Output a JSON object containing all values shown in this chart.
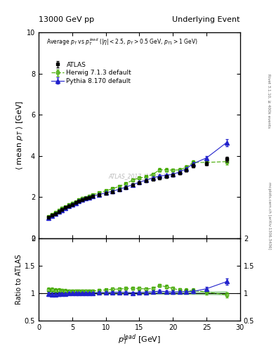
{
  "title_left": "13000 GeV pp",
  "title_right": "Underlying Event",
  "right_label": "Rivet 3.1.10, ≥ 400k events",
  "right_label2": "mcplots.cern.ch [arXiv:1306.3436]",
  "watermark": "ATLAS_2017_I1509919",
  "xlabel": "$p_T^{lead}$ [GeV]",
  "ylabel_main": "$\\langle$ mean $p_T$ $\\rangle$ [GeV]",
  "ylabel_ratio": "Ratio to ATLAS",
  "ylim_main": [
    0,
    10
  ],
  "ylim_ratio": [
    0.5,
    2
  ],
  "xlim": [
    0,
    30
  ],
  "atlas_x": [
    1.5,
    2.0,
    2.5,
    3.0,
    3.5,
    4.0,
    4.5,
    5.0,
    5.5,
    6.0,
    6.5,
    7.0,
    7.5,
    8.0,
    9.0,
    10.0,
    11.0,
    12.0,
    13.0,
    14.0,
    15.0,
    16.0,
    17.0,
    18.0,
    19.0,
    20.0,
    21.0,
    22.0,
    23.0,
    25.0,
    28.0
  ],
  "atlas_y": [
    1.0,
    1.1,
    1.2,
    1.3,
    1.4,
    1.48,
    1.56,
    1.64,
    1.72,
    1.8,
    1.86,
    1.92,
    1.98,
    2.03,
    2.1,
    2.18,
    2.25,
    2.35,
    2.45,
    2.6,
    2.7,
    2.78,
    2.86,
    2.92,
    2.98,
    3.05,
    3.15,
    3.3,
    3.52,
    3.62,
    3.85
  ],
  "atlas_yerr": [
    0.03,
    0.03,
    0.03,
    0.03,
    0.03,
    0.03,
    0.03,
    0.03,
    0.03,
    0.03,
    0.03,
    0.03,
    0.03,
    0.03,
    0.03,
    0.03,
    0.04,
    0.04,
    0.04,
    0.04,
    0.05,
    0.05,
    0.05,
    0.05,
    0.06,
    0.06,
    0.06,
    0.07,
    0.08,
    0.09,
    0.12
  ],
  "herwig_x": [
    1.5,
    2.0,
    2.5,
    3.0,
    3.5,
    4.0,
    4.5,
    5.0,
    5.5,
    6.0,
    6.5,
    7.0,
    7.5,
    8.0,
    9.0,
    10.0,
    11.0,
    12.0,
    13.0,
    14.0,
    15.0,
    16.0,
    17.0,
    18.0,
    19.0,
    20.0,
    21.0,
    22.0,
    23.0,
    25.0,
    28.0
  ],
  "herwig_y": [
    1.06,
    1.16,
    1.26,
    1.36,
    1.46,
    1.54,
    1.62,
    1.7,
    1.78,
    1.86,
    1.92,
    1.98,
    2.05,
    2.1,
    2.2,
    2.3,
    2.4,
    2.52,
    2.65,
    2.82,
    2.92,
    2.98,
    3.1,
    3.32,
    3.32,
    3.3,
    3.32,
    3.45,
    3.68,
    3.68,
    3.72
  ],
  "herwig_yerr": [
    0.03,
    0.03,
    0.03,
    0.03,
    0.03,
    0.03,
    0.03,
    0.03,
    0.03,
    0.03,
    0.03,
    0.03,
    0.03,
    0.03,
    0.03,
    0.03,
    0.04,
    0.04,
    0.05,
    0.06,
    0.06,
    0.06,
    0.07,
    0.07,
    0.08,
    0.08,
    0.09,
    0.1,
    0.11,
    0.12,
    0.14
  ],
  "pythia_x": [
    1.5,
    2.0,
    2.5,
    3.0,
    3.5,
    4.0,
    4.5,
    5.0,
    5.5,
    6.0,
    6.5,
    7.0,
    7.5,
    8.0,
    9.0,
    10.0,
    11.0,
    12.0,
    13.0,
    14.0,
    15.0,
    16.0,
    17.0,
    18.0,
    19.0,
    20.0,
    21.0,
    22.0,
    23.0,
    25.0,
    28.0
  ],
  "pythia_y": [
    0.98,
    1.07,
    1.17,
    1.27,
    1.37,
    1.46,
    1.55,
    1.63,
    1.71,
    1.79,
    1.86,
    1.92,
    1.98,
    2.03,
    2.12,
    2.2,
    2.28,
    2.38,
    2.48,
    2.6,
    2.72,
    2.82,
    2.92,
    3.02,
    3.05,
    3.1,
    3.22,
    3.38,
    3.62,
    3.9,
    4.65
  ],
  "pythia_yerr": [
    0.02,
    0.02,
    0.02,
    0.02,
    0.02,
    0.02,
    0.02,
    0.02,
    0.02,
    0.02,
    0.02,
    0.02,
    0.02,
    0.02,
    0.03,
    0.03,
    0.03,
    0.03,
    0.04,
    0.04,
    0.04,
    0.05,
    0.05,
    0.05,
    0.05,
    0.06,
    0.06,
    0.07,
    0.08,
    0.09,
    0.17
  ],
  "atlas_color": "black",
  "herwig_color": "#44aa00",
  "pythia_color": "#2222cc",
  "atlas_band_color": "#88cc88",
  "xticks": [
    0,
    5,
    10,
    15,
    20,
    25,
    30
  ],
  "yticks_main": [
    0,
    2,
    4,
    6,
    8,
    10
  ],
  "yticks_ratio": [
    0.5,
    1.0,
    1.5,
    2.0
  ]
}
